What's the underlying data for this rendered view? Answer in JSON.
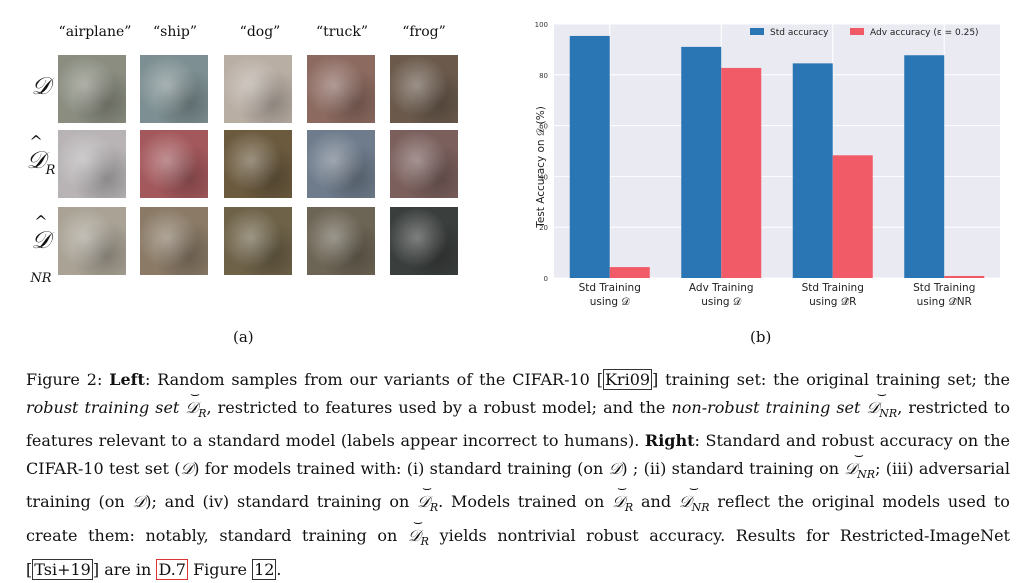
{
  "panel_a": {
    "column_labels": [
      "“airplane”",
      "“ship”",
      "“dog”",
      "“truck”",
      "“frog”"
    ],
    "row_labels": [
      {
        "base": "D",
        "sub": ""
      },
      {
        "base": "D",
        "sub": "R"
      },
      {
        "base": "D",
        "sub": "NR"
      }
    ],
    "thumb_colors": [
      [
        "#8a8d80",
        "#7d8f92",
        "#b9aea4",
        "#8c6a60",
        "#6b5a4c"
      ],
      [
        "#b8b4b6",
        "#a3585c",
        "#6b5a3e",
        "#6f7c8c",
        "#7a5f5c"
      ],
      [
        "#a9a295",
        "#8a7a66",
        "#6e6248",
        "#6c6454",
        "#3a3e3c"
      ]
    ],
    "caption": "(a)"
  },
  "panel_b": {
    "caption": "(b)"
  },
  "chart_data": {
    "type": "bar",
    "ylabel": "Test Accuracy on 𝒟 (%)",
    "ylim": [
      0,
      100
    ],
    "yticks": [
      0,
      20,
      40,
      60,
      80,
      100
    ],
    "grid": true,
    "legend_position": "top-right",
    "categories": [
      [
        "Std Training",
        "using 𝒟"
      ],
      [
        "Adv Training",
        "using 𝒟"
      ],
      [
        "Std Training",
        "using 𝒟̂R"
      ],
      [
        "Std Training",
        "using 𝒟̂NR"
      ]
    ],
    "series": [
      {
        "name": "Std accuracy",
        "color": "#2a75b3",
        "values": [
          95.3,
          91.0,
          84.5,
          87.7
        ]
      },
      {
        "name": "Adv accuracy (ε = 0.25)",
        "color": "#f15b68",
        "values": [
          4.3,
          82.7,
          48.3,
          0.8
        ]
      }
    ]
  },
  "caption": {
    "fig_label": "Figure 2:",
    "left_label": "Left",
    "text_1": ": Random samples from our variants of the CIFAR-10",
    "cite_1": "Kri09",
    "text_2": "training set: the original training set; the",
    "robust_set": "robust training set",
    "text_3": ", restricted to features used by a robust model; and the",
    "nonrobust_set": "non-robust training set",
    "text_4": ", restricted to features relevant to a standard model (labels appear incorrect to humans).",
    "right_label": "Right",
    "text_5": ": Standard and robust accuracy on the CIFAR-10 test set (",
    "text_6": ") for models trained with: (i) standard training (on",
    "text_7": ") ; (ii) standard training on",
    "text_8": "; (iii) adversarial training (on",
    "text_9": "); and (iv) standard training on",
    "text_10": ". Models trained on",
    "text_11": "and",
    "text_12": "reflect the original models used to create them: notably, standard training on",
    "text_13": "yields nontrivial robust accuracy. Results for Restricted-ImageNet",
    "cite_2": "Tsi+19",
    "text_14": "are in",
    "ref_1": "D.7",
    "text_15": "Figure",
    "ref_2": "12",
    "text_16": ".",
    "sym_D": "𝒟",
    "sub_R": "R",
    "sub_NR": "NR"
  }
}
